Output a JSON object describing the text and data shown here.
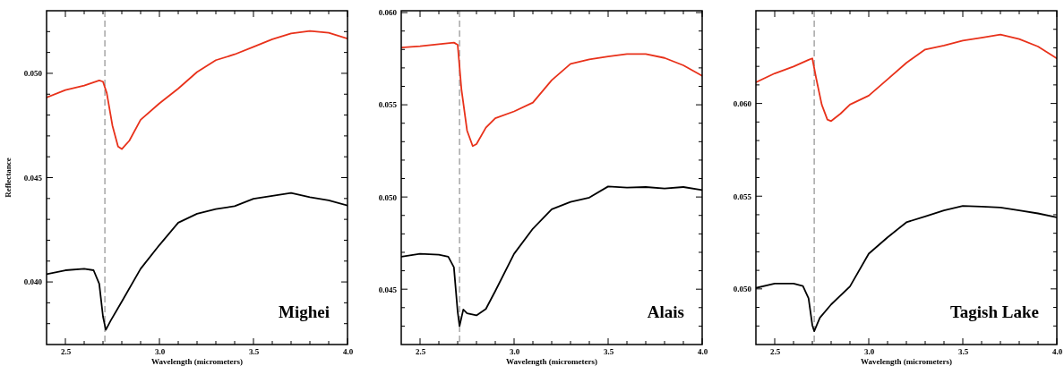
{
  "chart_data": [
    {
      "type": "line",
      "xlabel": "Wavelength (micrometers)",
      "ylabel": "Reflectance",
      "annotations": [
        "Mighei"
      ],
      "xlim": [
        2.4,
        4.0
      ],
      "ylim": [
        0.037,
        0.053
      ],
      "xticks": [
        {
          "value": 2.5,
          "label": "2.5"
        },
        {
          "value": 2.6,
          "label": null
        },
        {
          "value": 2.7,
          "label": null
        },
        {
          "value": 2.8,
          "label": null
        },
        {
          "value": 2.9,
          "label": null
        },
        {
          "value": 3.0,
          "label": "3.0"
        },
        {
          "value": 3.1,
          "label": null
        },
        {
          "value": 3.2,
          "label": null
        },
        {
          "value": 3.3,
          "label": null
        },
        {
          "value": 3.4,
          "label": null
        },
        {
          "value": 3.5,
          "label": "3.5"
        },
        {
          "value": 3.6,
          "label": null
        },
        {
          "value": 3.7,
          "label": null
        },
        {
          "value": 3.8,
          "label": null
        },
        {
          "value": 3.9,
          "label": null
        },
        {
          "value": 4.0,
          "label": "4.0"
        }
      ],
      "yticks": [
        {
          "value": 0.038,
          "label": null
        },
        {
          "value": 0.039,
          "label": null
        },
        {
          "value": 0.04,
          "label": "0.040"
        },
        {
          "value": 0.041,
          "label": null
        },
        {
          "value": 0.042,
          "label": null
        },
        {
          "value": 0.043,
          "label": null
        },
        {
          "value": 0.044,
          "label": null
        },
        {
          "value": 0.045,
          "label": "0.045"
        },
        {
          "value": 0.046,
          "label": null
        },
        {
          "value": 0.047,
          "label": null
        },
        {
          "value": 0.048,
          "label": null
        },
        {
          "value": 0.049,
          "label": null
        },
        {
          "value": 0.05,
          "label": "0.050"
        },
        {
          "value": 0.051,
          "label": null
        },
        {
          "value": 0.052,
          "label": null
        }
      ],
      "ref_lines": [
        {
          "axis": "x",
          "value": 2.71,
          "color": "#999999",
          "line_style": "dashed"
        }
      ],
      "series": [
        {
          "color": "#e8311a",
          "x": [
            2.4,
            2.5,
            2.6,
            2.68,
            2.7,
            2.72,
            2.75,
            2.78,
            2.8,
            2.84,
            2.9,
            3.0,
            3.1,
            3.2,
            3.3,
            3.4,
            3.5,
            3.6,
            3.7,
            3.8,
            3.9,
            4.0
          ],
          "values": [
            0.04884,
            0.0492,
            0.04941,
            0.04966,
            0.0496,
            0.04906,
            0.0475,
            0.04649,
            0.04637,
            0.04677,
            0.04777,
            0.04856,
            0.04927,
            0.05006,
            0.05063,
            0.05091,
            0.05127,
            0.05163,
            0.05191,
            0.05203,
            0.05194,
            0.05166
          ]
        },
        {
          "color": "#000000",
          "x": [
            2.4,
            2.5,
            2.6,
            2.65,
            2.68,
            2.7,
            2.715,
            2.74,
            2.8,
            2.9,
            3.0,
            3.1,
            3.2,
            3.3,
            3.4,
            3.5,
            3.6,
            3.7,
            3.8,
            3.9,
            4.0
          ],
          "values": [
            0.04037,
            0.04056,
            0.04063,
            0.04056,
            0.03991,
            0.03834,
            0.0377,
            0.03813,
            0.03906,
            0.04063,
            0.04177,
            0.04284,
            0.04327,
            0.04349,
            0.04363,
            0.04399,
            0.04413,
            0.04427,
            0.04406,
            0.04391,
            0.04366
          ]
        }
      ]
    },
    {
      "type": "line",
      "xlabel": "Wavelength (micrometers)",
      "annotations": [
        "Alais"
      ],
      "xlim": [
        2.4,
        4.0
      ],
      "ylim": [
        0.042,
        0.0601
      ],
      "xticks": [
        {
          "value": 2.5,
          "label": "2.5"
        },
        {
          "value": 2.6,
          "label": null
        },
        {
          "value": 2.7,
          "label": null
        },
        {
          "value": 2.8,
          "label": null
        },
        {
          "value": 2.9,
          "label": null
        },
        {
          "value": 3.0,
          "label": "3.0"
        },
        {
          "value": 3.1,
          "label": null
        },
        {
          "value": 3.2,
          "label": null
        },
        {
          "value": 3.3,
          "label": null
        },
        {
          "value": 3.4,
          "label": null
        },
        {
          "value": 3.5,
          "label": "3.5"
        },
        {
          "value": 3.6,
          "label": null
        },
        {
          "value": 3.7,
          "label": null
        },
        {
          "value": 3.8,
          "label": null
        },
        {
          "value": 3.9,
          "label": null
        },
        {
          "value": 4.0,
          "label": "4.0"
        }
      ],
      "yticks": [
        {
          "value": 0.043,
          "label": null
        },
        {
          "value": 0.044,
          "label": null
        },
        {
          "value": 0.045,
          "label": "0.045"
        },
        {
          "value": 0.046,
          "label": null
        },
        {
          "value": 0.047,
          "label": null
        },
        {
          "value": 0.048,
          "label": null
        },
        {
          "value": 0.049,
          "label": null
        },
        {
          "value": 0.05,
          "label": "0.050"
        },
        {
          "value": 0.051,
          "label": null
        },
        {
          "value": 0.052,
          "label": null
        },
        {
          "value": 0.053,
          "label": null
        },
        {
          "value": 0.054,
          "label": null
        },
        {
          "value": 0.055,
          "label": "0.055"
        },
        {
          "value": 0.056,
          "label": null
        },
        {
          "value": 0.057,
          "label": null
        },
        {
          "value": 0.058,
          "label": null
        },
        {
          "value": 0.059,
          "label": null
        },
        {
          "value": 0.06,
          "label": "0.060"
        }
      ],
      "ref_lines": [
        {
          "axis": "x",
          "value": 2.71,
          "color": "#999999",
          "line_style": "dashed"
        }
      ],
      "series": [
        {
          "color": "#e8311a",
          "x": [
            2.4,
            2.5,
            2.6,
            2.68,
            2.7,
            2.72,
            2.75,
            2.78,
            2.8,
            2.85,
            2.9,
            3.0,
            3.1,
            3.2,
            3.3,
            3.4,
            3.5,
            3.6,
            3.7,
            3.8,
            3.9,
            4.0
          ],
          "values": [
            0.0581,
            0.05818,
            0.05829,
            0.05837,
            0.05826,
            0.05585,
            0.0536,
            0.05276,
            0.05287,
            0.05376,
            0.05427,
            0.05464,
            0.05512,
            0.05633,
            0.05722,
            0.05746,
            0.05762,
            0.05775,
            0.05775,
            0.05754,
            0.05714,
            0.05657
          ]
        },
        {
          "color": "#000000",
          "x": [
            2.4,
            2.5,
            2.6,
            2.65,
            2.68,
            2.7,
            2.71,
            2.73,
            2.75,
            2.8,
            2.85,
            2.9,
            3.0,
            3.1,
            3.2,
            3.3,
            3.4,
            3.5,
            3.6,
            3.7,
            3.8,
            3.9,
            4.0
          ],
          "values": [
            0.04676,
            0.04692,
            0.04687,
            0.04676,
            0.04619,
            0.04378,
            0.043,
            0.0439,
            0.04369,
            0.04358,
            0.04393,
            0.0449,
            0.04692,
            0.04828,
            0.04933,
            0.04973,
            0.04997,
            0.05057,
            0.05051,
            0.05054,
            0.05046,
            0.05054,
            0.05038
          ]
        }
      ]
    },
    {
      "type": "line",
      "xlabel": "Wavelength (micrometers)",
      "annotations": [
        "Tagish Lake"
      ],
      "xlim": [
        2.4,
        4.0
      ],
      "ylim": [
        0.047,
        0.065
      ],
      "xticks": [
        {
          "value": 2.5,
          "label": "2.5"
        },
        {
          "value": 2.6,
          "label": null
        },
        {
          "value": 2.7,
          "label": null
        },
        {
          "value": 2.8,
          "label": null
        },
        {
          "value": 2.9,
          "label": null
        },
        {
          "value": 3.0,
          "label": "3.0"
        },
        {
          "value": 3.1,
          "label": null
        },
        {
          "value": 3.2,
          "label": null
        },
        {
          "value": 3.3,
          "label": null
        },
        {
          "value": 3.4,
          "label": null
        },
        {
          "value": 3.5,
          "label": "3.5"
        },
        {
          "value": 3.6,
          "label": null
        },
        {
          "value": 3.7,
          "label": null
        },
        {
          "value": 3.8,
          "label": null
        },
        {
          "value": 3.9,
          "label": null
        },
        {
          "value": 4.0,
          "label": "4.0"
        }
      ],
      "yticks": [
        {
          "value": 0.048,
          "label": null
        },
        {
          "value": 0.049,
          "label": null
        },
        {
          "value": 0.05,
          "label": "0.050"
        },
        {
          "value": 0.051,
          "label": null
        },
        {
          "value": 0.052,
          "label": null
        },
        {
          "value": 0.053,
          "label": null
        },
        {
          "value": 0.054,
          "label": null
        },
        {
          "value": 0.055,
          "label": "0.055"
        },
        {
          "value": 0.056,
          "label": null
        },
        {
          "value": 0.057,
          "label": null
        },
        {
          "value": 0.058,
          "label": null
        },
        {
          "value": 0.059,
          "label": null
        },
        {
          "value": 0.06,
          "label": "0.060"
        },
        {
          "value": 0.061,
          "label": null
        },
        {
          "value": 0.062,
          "label": null
        },
        {
          "value": 0.063,
          "label": null
        },
        {
          "value": 0.064,
          "label": null
        }
      ],
      "ref_lines": [
        {
          "axis": "x",
          "value": 2.71,
          "color": "#999999",
          "line_style": "dashed"
        }
      ],
      "series": [
        {
          "color": "#e8311a",
          "x": [
            2.4,
            2.5,
            2.6,
            2.68,
            2.7,
            2.72,
            2.75,
            2.78,
            2.8,
            2.85,
            2.9,
            3.0,
            3.1,
            3.2,
            3.3,
            3.4,
            3.5,
            3.6,
            3.7,
            3.8,
            3.9,
            4.0
          ],
          "values": [
            0.06114,
            0.06162,
            0.06199,
            0.06235,
            0.06243,
            0.06138,
            0.05994,
            0.05913,
            0.05905,
            0.05945,
            0.05994,
            0.06042,
            0.0613,
            0.06219,
            0.06291,
            0.06312,
            0.06339,
            0.06355,
            0.06371,
            0.06347,
            0.06307,
            0.06243
          ]
        },
        {
          "color": "#000000",
          "x": [
            2.4,
            2.5,
            2.6,
            2.65,
            2.68,
            2.7,
            2.71,
            2.74,
            2.8,
            2.9,
            3.0,
            3.1,
            3.2,
            3.3,
            3.4,
            3.5,
            3.6,
            3.7,
            3.8,
            3.9,
            4.0
          ],
          "values": [
            0.05005,
            0.05029,
            0.05029,
            0.05016,
            0.04949,
            0.04804,
            0.04772,
            0.04844,
            0.04916,
            0.05013,
            0.0519,
            0.05278,
            0.05359,
            0.05391,
            0.05423,
            0.05447,
            0.05444,
            0.05439,
            0.05423,
            0.05407,
            0.05386
          ]
        }
      ]
    }
  ]
}
